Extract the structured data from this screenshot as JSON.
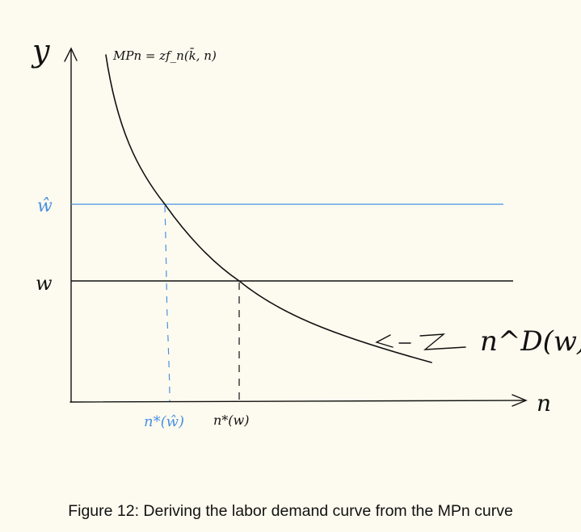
{
  "diagram": {
    "axes": {
      "y_label": "y",
      "x_label": "n"
    },
    "curve": {
      "label": "MPn = zf_n(k̄, n)",
      "demand_label": "n^D(w)",
      "color": "#111111"
    },
    "wage_high": {
      "label": "ŵ",
      "n_label": "n*(ŵ)",
      "color": "#4a90e2"
    },
    "wage_low": {
      "label": "w",
      "n_label": "n*(w)",
      "color": "#111111"
    }
  },
  "caption": "Figure 12: Deriving the labor demand curve from the MPn curve"
}
